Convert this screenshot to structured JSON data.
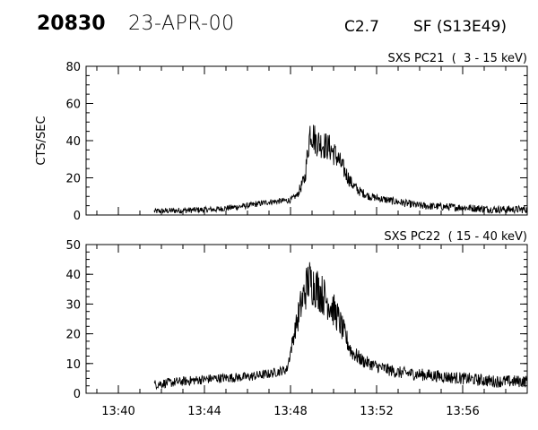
{
  "header": {
    "event_id": "20830",
    "date": "23-APR-00",
    "goes_class": "C2.7",
    "flare_type": "SF (S13E49)"
  },
  "chart_data": [
    {
      "type": "line",
      "panel_label": "SXS PC21  (  3 - 15 keV)",
      "ylabel": "CTS/SEC",
      "xlim": [
        "13:38:30",
        "13:59:00"
      ],
      "ylim": [
        0,
        80
      ],
      "yticks": [
        0,
        20,
        40,
        60,
        80
      ],
      "series": [
        {
          "x": [
            "13:41:40",
            "13:43:00",
            "13:44:30",
            "13:46:00",
            "13:47:00",
            "13:48:00",
            "13:48:20",
            "13:48:40",
            "13:48:55",
            "13:49:10",
            "13:49:30",
            "13:49:50",
            "13:50:10",
            "13:50:30",
            "13:50:50",
            "13:51:10",
            "13:51:40",
            "13:52:30",
            "13:54:00",
            "13:56:00",
            "13:57:30",
            "13:59:00"
          ],
          "y": [
            2,
            2.5,
            3,
            5,
            7,
            8,
            11,
            20,
            46,
            40,
            38,
            36,
            31,
            24,
            17,
            13,
            10,
            8,
            5,
            4,
            3,
            3
          ]
        }
      ]
    },
    {
      "type": "line",
      "panel_label": "SXS PC22  ( 15 - 40 keV)",
      "ylabel": "",
      "xlim": [
        "13:38:30",
        "13:59:00"
      ],
      "ylim": [
        0,
        50
      ],
      "yticks": [
        0,
        10,
        20,
        30,
        40,
        50
      ],
      "xticks": [
        "13:40",
        "13:44",
        "13:48",
        "13:52",
        "13:56"
      ],
      "series": [
        {
          "x": [
            "13:41:40",
            "13:43:00",
            "13:44:30",
            "13:46:00",
            "13:47:00",
            "13:47:50",
            "13:48:10",
            "13:48:30",
            "13:48:50",
            "13:49:10",
            "13:49:30",
            "13:49:50",
            "13:50:10",
            "13:50:30",
            "13:50:50",
            "13:51:20",
            "13:52:00",
            "13:53:00",
            "13:54:30",
            "13:56:00",
            "13:57:30",
            "13:59:00"
          ],
          "y": [
            3,
            4,
            5,
            5.5,
            6.5,
            8,
            20,
            30,
            38,
            36,
            33,
            30,
            26,
            20,
            14,
            11,
            9,
            7,
            6,
            5,
            4,
            4
          ]
        }
      ]
    }
  ]
}
